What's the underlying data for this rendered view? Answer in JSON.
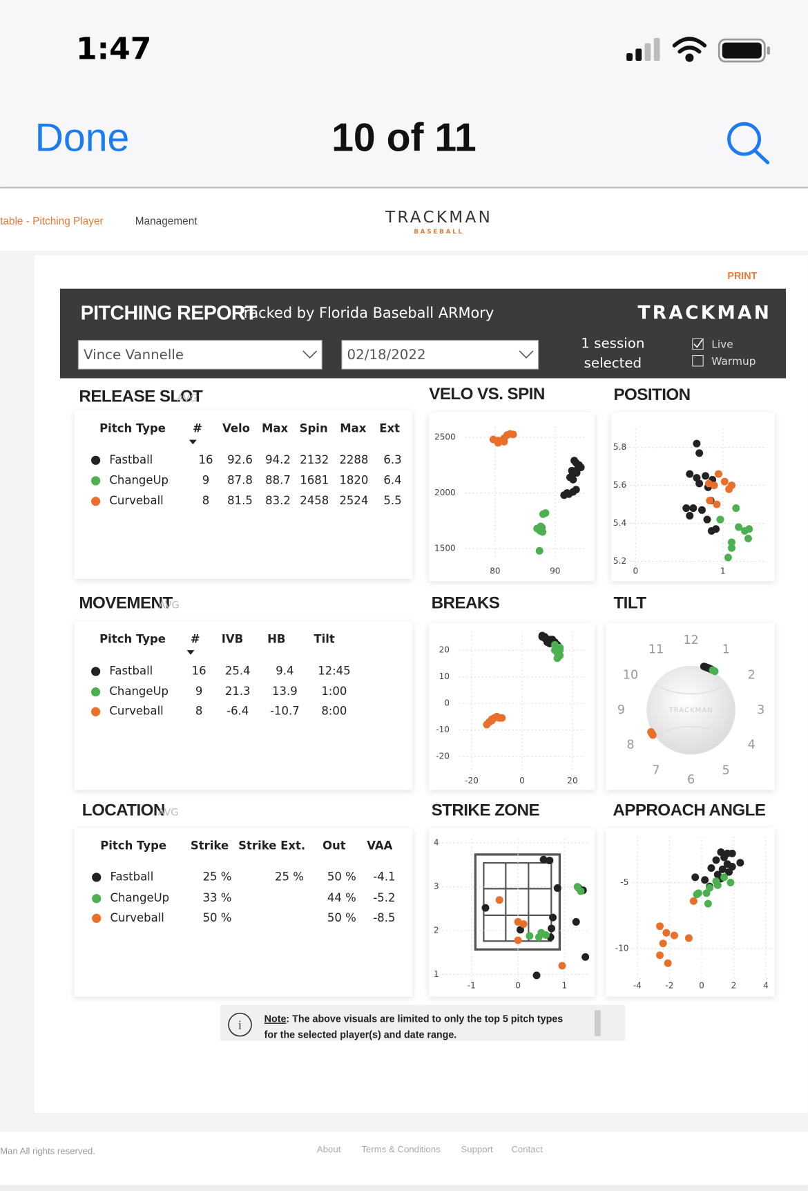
{
  "status": {
    "time": "1:47"
  },
  "nav": {
    "done": "Done",
    "title": "10 of 11"
  },
  "site": {
    "breadcrumb": "table - Pitching Player",
    "menu": "Management",
    "logo": "TRACKMAN",
    "logo_sub": "BASEBALL",
    "print": "PRINT"
  },
  "report": {
    "title": "PITCHING REPORT",
    "subtitle": "Tracked by Florida Baseball ARMory",
    "brand": "TRACKMAN",
    "player": "Vince Vannelle",
    "date": "02/18/2022",
    "session_1": "1 session",
    "session_2": "selected",
    "live": "Live",
    "warmup": "Warmup"
  },
  "tables": [
    {
      "title": "RELEASE SLOT",
      "tag": "AVG",
      "columns": [
        "Pitch Type",
        "#",
        "Velo",
        "Max",
        "Spin",
        "Max",
        "Ext"
      ],
      "rows": [
        {
          "color": "#222222",
          "pitch": "Fastball",
          "cells": [
            16,
            92.6,
            94.2,
            2132,
            2288,
            6.3
          ]
        },
        {
          "color": "#4caf50",
          "pitch": "ChangeUp",
          "cells": [
            9,
            87.8,
            88.7,
            1681,
            1820,
            6.4
          ]
        },
        {
          "color": "#e8702a",
          "pitch": "Curveball",
          "cells": [
            8,
            81.5,
            83.2,
            2458,
            2524,
            5.5
          ]
        }
      ]
    },
    {
      "title": "MOVEMENT",
      "tag": "AVG",
      "columns": [
        "Pitch Type",
        "#",
        "IVB",
        "HB",
        "Tilt"
      ],
      "rows": [
        {
          "color": "#222222",
          "pitch": "Fastball",
          "cells": [
            16,
            25.4,
            9.4,
            "12:45"
          ]
        },
        {
          "color": "#4caf50",
          "pitch": "ChangeUp",
          "cells": [
            9,
            21.3,
            13.9,
            "1:00"
          ]
        },
        {
          "color": "#e8702a",
          "pitch": "Curveball",
          "cells": [
            8,
            -6.4,
            -10.7,
            "8:00"
          ]
        }
      ]
    },
    {
      "title": "LOCATION",
      "tag": "AVG",
      "columns": [
        "Pitch Type",
        "Strike",
        "Strike Ext.",
        "Out",
        "VAA"
      ],
      "rows": [
        {
          "color": "#222222",
          "pitch": "Fastball",
          "cells": [
            "25 %",
            "25 %",
            "50 %",
            -4.1
          ]
        },
        {
          "color": "#4caf50",
          "pitch": "ChangeUp",
          "cells": [
            "33 %",
            null,
            "44 %",
            -5.2
          ]
        },
        {
          "color": "#e8702a",
          "pitch": "Curveball",
          "cells": [
            "50 %",
            null,
            "50 %",
            -8.5
          ]
        }
      ]
    }
  ],
  "chart_data": [
    {
      "type": "scatter",
      "title": "VELO VS. SPIN",
      "xlim": [
        75,
        95
      ],
      "ylim": [
        1400,
        2600
      ],
      "xticks": [
        80,
        90
      ],
      "yticks": [
        1500,
        2000,
        2500
      ],
      "grid": true,
      "series": [
        {
          "color": "#222222",
          "x": [
            93.2,
            93.5,
            94,
            93.8,
            94.3,
            92.8,
            93,
            92.5,
            93,
            92,
            91.5,
            93,
            92.3,
            93.5,
            92.8,
            93.6
          ],
          "values": [
            2290,
            2270,
            2250,
            2220,
            2230,
            2200,
            2170,
            2140,
            2120,
            2000,
            1980,
            2010,
            1990,
            2030,
            2150,
            2180
          ]
        },
        {
          "color": "#4caf50",
          "x": [
            88.4,
            88,
            87.6,
            87.2,
            87.8,
            87.5,
            87,
            87.9,
            87.4
          ],
          "values": [
            1820,
            1810,
            1700,
            1680,
            1690,
            1660,
            1680,
            1650,
            1480
          ]
        },
        {
          "color": "#e8702a",
          "x": [
            79.7,
            80.5,
            81.5,
            82,
            82.5,
            83,
            81.5,
            80.5
          ],
          "values": [
            2480,
            2470,
            2490,
            2520,
            2530,
            2525,
            2460,
            2450
          ]
        }
      ]
    },
    {
      "type": "scatter",
      "title": "POSITION",
      "xlim": [
        -0.2,
        1.5
      ],
      "ylim": [
        5.15,
        5.9
      ],
      "xticks": [
        0,
        1
      ],
      "yticks": [
        5.2,
        5.4,
        5.6,
        5.8
      ],
      "grid": true,
      "series": [
        {
          "color": "#222222",
          "x": [
            0.7,
            0.73,
            0.62,
            0.7,
            0.8,
            0.88,
            0.73,
            0.83,
            0.58,
            0.66,
            0.76,
            0.62,
            0.82,
            0.87,
            0.92,
            0.86
          ],
          "values": [
            5.82,
            5.77,
            5.66,
            5.64,
            5.65,
            5.63,
            5.61,
            5.59,
            5.48,
            5.48,
            5.47,
            5.44,
            5.42,
            5.36,
            5.37,
            5.52
          ]
        },
        {
          "color": "#e8702a",
          "x": [
            0.95,
            1.02,
            0.84,
            0.9,
            1.07,
            1.1,
            0.85,
            0.93
          ],
          "values": [
            5.66,
            5.62,
            5.61,
            5.6,
            5.58,
            5.6,
            5.52,
            5.5
          ]
        },
        {
          "color": "#4caf50",
          "x": [
            0.97,
            1.15,
            1.18,
            1.25,
            1.3,
            1.29,
            1.1,
            1.1,
            1.06
          ],
          "values": [
            5.42,
            5.48,
            5.38,
            5.36,
            5.37,
            5.32,
            5.3,
            5.27,
            5.22
          ]
        }
      ]
    },
    {
      "type": "scatter",
      "title": "BREAKS",
      "xlim": [
        -25,
        25
      ],
      "ylim": [
        -25,
        27
      ],
      "xticks": [
        -20,
        0,
        20
      ],
      "yticks": [
        -20,
        -10,
        0,
        10,
        20
      ],
      "grid": true,
      "series": [
        {
          "color": "#222222",
          "x": [
            8,
            9,
            10,
            11,
            12,
            13,
            14,
            9,
            10,
            11,
            12,
            13,
            8,
            10,
            12,
            11
          ],
          "values": [
            25,
            24.5,
            24,
            23.5,
            23,
            22.5,
            22,
            25,
            24,
            24,
            23,
            23,
            25.5,
            23,
            24,
            22.5
          ]
        },
        {
          "color": "#4caf50",
          "x": [
            13,
            14,
            15,
            14,
            15,
            13,
            14,
            15,
            14
          ],
          "values": [
            22,
            21,
            20,
            19,
            18,
            20,
            17,
            21,
            19
          ]
        },
        {
          "color": "#e8702a",
          "x": [
            -14,
            -13,
            -12,
            -11,
            -10,
            -9,
            -8,
            -12
          ],
          "values": [
            -8,
            -7,
            -6,
            -5.5,
            -5,
            -5.5,
            -5.5,
            -6.5
          ]
        }
      ]
    },
    {
      "type": "clock",
      "title": "TILT",
      "watermark": "TRACKMAN",
      "hours": [
        12,
        1,
        2,
        3,
        4,
        5,
        6,
        7,
        8,
        9,
        10,
        11
      ],
      "series": [
        {
          "color": "#222222",
          "values": [
            12.55,
            12.6,
            12.65,
            12.7,
            12.75,
            12.8,
            12.85,
            12.9
          ]
        },
        {
          "color": "#4caf50",
          "values": [
            12.95,
            13,
            13.05
          ]
        },
        {
          "color": "#e8702a",
          "values": [
            7.9,
            7.95,
            8,
            8.05
          ]
        }
      ]
    },
    {
      "type": "scatter",
      "title": "STRIKE ZONE",
      "xlim": [
        -1.8,
        1.55
      ],
      "ylim": [
        0.8,
        4.1
      ],
      "xticks": [
        -1,
        0,
        1
      ],
      "yticks": [
        1,
        2,
        3,
        4
      ],
      "grid": true,
      "series": [
        {
          "color": "#222222",
          "x": [
            0.55,
            0.68,
            0.85,
            1.3,
            -0.7,
            1.25,
            0.75,
            0.05,
            0.72,
            0.7,
            1.45,
            0.4,
            1.4
          ],
          "values": [
            3.62,
            3.6,
            2.97,
            2.98,
            2.52,
            2.2,
            2.3,
            2.02,
            2.05,
            1.85,
            1.4,
            0.98,
            2.92
          ]
        },
        {
          "color": "#4caf50",
          "x": [
            1.35,
            1.28,
            0.5,
            0.45,
            0.6,
            0.25
          ],
          "values": [
            2.9,
            3,
            1.95,
            1.85,
            1.9,
            1.88
          ]
        },
        {
          "color": "#e8702a",
          "x": [
            -0.4,
            0,
            0.12,
            0,
            0.95
          ],
          "values": [
            2.7,
            2.2,
            2.15,
            1.78,
            1.2
          ]
        }
      ]
    },
    {
      "type": "scatter",
      "title": "APPROACH ANGLE",
      "xlim": [
        -4.3,
        4.3
      ],
      "ylim": [
        -12.3,
        -1.5
      ],
      "xticks": [
        -4,
        -2,
        0,
        2,
        4
      ],
      "yticks": [
        -10,
        -5
      ],
      "grid": true,
      "series": [
        {
          "color": "#222222",
          "x": [
            1.2,
            1.6,
            1.9,
            0.9,
            1.4,
            2.4,
            1.6,
            1.9,
            1.3,
            0.6,
            -0.4,
            0.2,
            1,
            0.5,
            1.7,
            1.2
          ],
          "values": [
            -2.7,
            -2.8,
            -2.8,
            -3.3,
            -3.1,
            -3.5,
            -3.6,
            -3.8,
            -4,
            -3.9,
            -4.6,
            -4.8,
            -4.4,
            -5.3,
            -4.2,
            -4.7
          ]
        },
        {
          "color": "#4caf50",
          "x": [
            1.4,
            1.8,
            0.5,
            0.3,
            -0.2,
            1,
            0.4,
            -0.3,
            0.9
          ],
          "values": [
            -4.6,
            -5,
            -5.4,
            -5.8,
            -5.8,
            -5.2,
            -6.6,
            -5.9,
            -4.9
          ]
        },
        {
          "color": "#e8702a",
          "x": [
            -0.5,
            -2.6,
            -2.2,
            -1.7,
            -2.4,
            -0.8,
            -2.6,
            -2.1
          ],
          "values": [
            -6.4,
            -8.3,
            -8.8,
            -9,
            -9.6,
            -9.2,
            -10.5,
            -11.1
          ]
        }
      ]
    }
  ],
  "note": {
    "label": "Note",
    "text_1": ": The above visuals are limited to only the top 5 pitch types",
    "text_2": "for the selected player(s) and date range."
  },
  "footer": {
    "copyright": "Man All rights reserved.",
    "links": [
      "About",
      "Terms & Conditions",
      "Support",
      "Contact"
    ]
  }
}
